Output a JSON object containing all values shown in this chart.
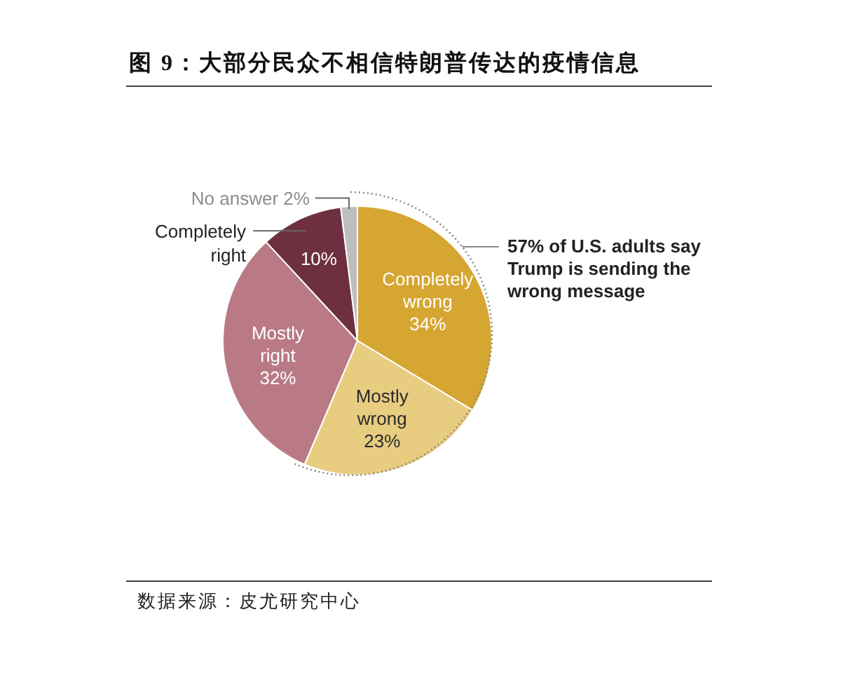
{
  "chart_data": {
    "type": "pie",
    "title": "图 9：大部分民众不相信特朗普传达的疫情信息",
    "categories": [
      "Completely wrong",
      "Mostly wrong",
      "Mostly right",
      "Completely right",
      "No answer"
    ],
    "values": [
      34,
      23,
      32,
      10,
      2
    ],
    "colors": [
      "#d6a632",
      "#e8cc80",
      "#b97a86",
      "#6e3040",
      "#bebebe"
    ],
    "value_labels": [
      "34%",
      "23%",
      "32%",
      "10%",
      "2%"
    ],
    "annotations": [
      "57% of U.S. adults say Trump is sending the wrong message",
      "数据来源：皮尤研究中心"
    ]
  }
}
